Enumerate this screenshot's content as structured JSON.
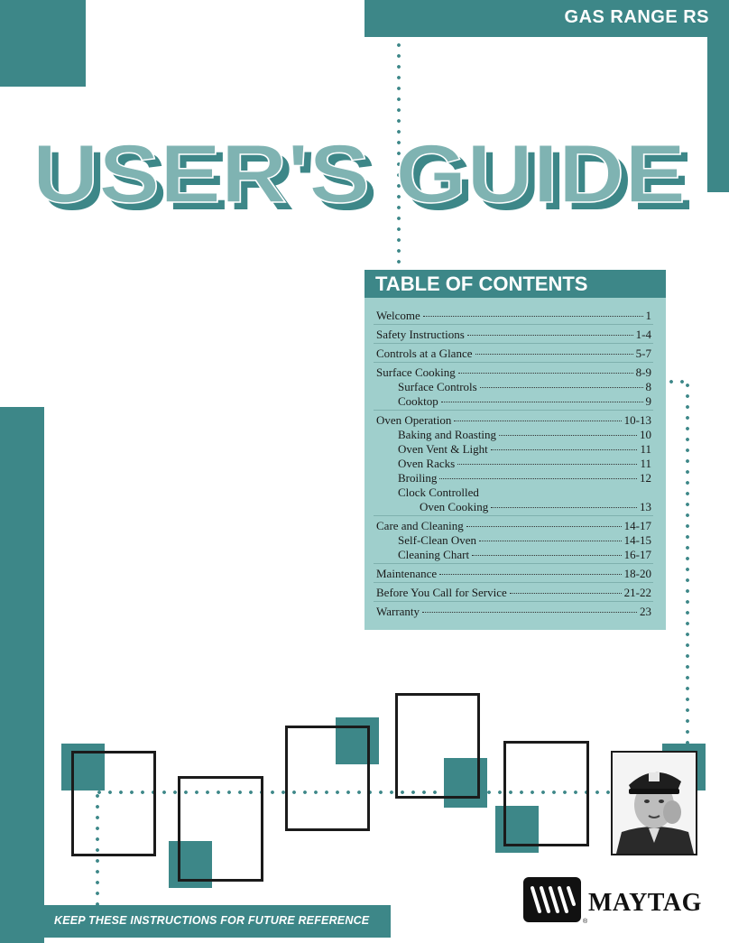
{
  "header": {
    "product": "GAS RANGE RS"
  },
  "title": "USER'S GUIDE",
  "toc": {
    "heading": "TABLE OF CONTENTS",
    "entries": [
      {
        "label": "Welcome",
        "page": "1"
      },
      {
        "label": "Safety Instructions",
        "page": "1-4"
      },
      {
        "label": "Controls at a Glance",
        "page": "5-7"
      },
      {
        "label": "Surface Cooking",
        "page": "8-9"
      },
      {
        "label": "Surface Controls",
        "page": "8"
      },
      {
        "label": "Cooktop",
        "page": "9"
      },
      {
        "label": "Oven Operation",
        "page": "10-13"
      },
      {
        "label": "Baking and Roasting",
        "page": "10"
      },
      {
        "label": "Oven Vent & Light",
        "page": "11"
      },
      {
        "label": "Oven Racks",
        "page": "11"
      },
      {
        "label": "Broiling",
        "page": "12"
      },
      {
        "label": "Clock Controlled",
        "page": ""
      },
      {
        "label": "Oven Cooking",
        "page": "13"
      },
      {
        "label": "Care and Cleaning",
        "page": "14-17"
      },
      {
        "label": "Self-Clean Oven",
        "page": "14-15"
      },
      {
        "label": "Cleaning Chart",
        "page": "16-17"
      },
      {
        "label": "Maintenance",
        "page": "18-20"
      },
      {
        "label": "Before You Call for Service",
        "page": "21-22"
      },
      {
        "label": "Warranty",
        "page": "23"
      }
    ]
  },
  "footer": {
    "note": "KEEP THESE INSTRUCTIONS FOR FUTURE REFERENCE"
  },
  "brand": {
    "name": "MAYTAG",
    "registered": "®"
  },
  "colors": {
    "teal": "#3d8788",
    "teal_light": "#9fcfcc",
    "title_fill": "#7fb3b2",
    "title_shadow": "#3d8788"
  }
}
